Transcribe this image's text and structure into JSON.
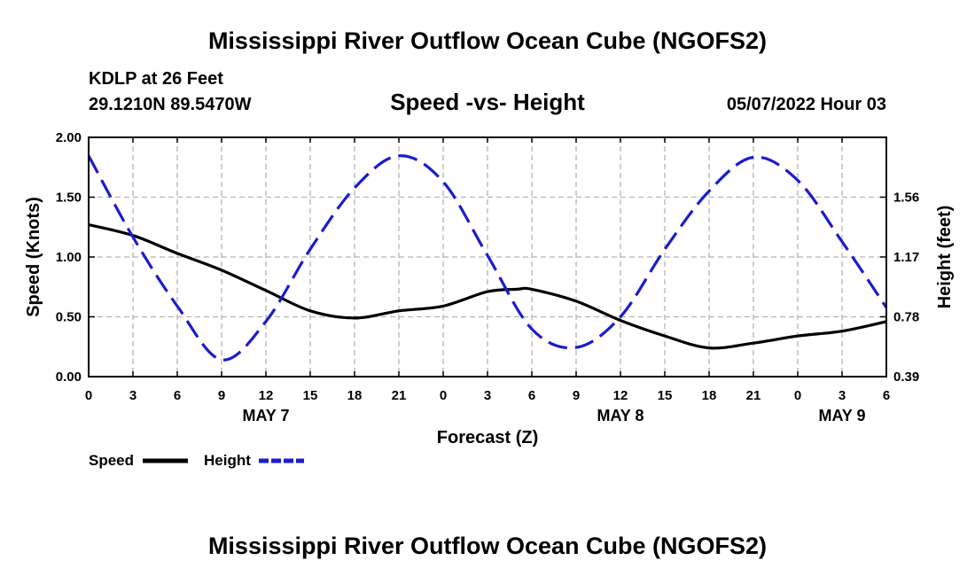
{
  "header": {
    "title": "Mississippi River Outflow Ocean Cube (NGOFS2)",
    "station": "KDLP at 26 Feet",
    "location": "29.1210N  89.5470W",
    "chart_title": "Speed -vs- Height",
    "timestamp": "05/07/2022 Hour 03"
  },
  "footer": {
    "title": "Mississippi River Outflow Ocean Cube (NGOFS2)"
  },
  "legend": {
    "speed_label": "Speed",
    "height_label": "Height"
  },
  "colors": {
    "speed": "#000000",
    "height": "#1c1ccc",
    "grid": "#b4b4b4"
  },
  "chart_data": {
    "type": "line",
    "title": "Speed -vs- Height",
    "xlabel": "Forecast (Z)",
    "ylabel": "Speed (Knots)",
    "y2label": "Height (feet)",
    "x_tick_labels": [
      "0",
      "3",
      "6",
      "9",
      "12",
      "15",
      "18",
      "21",
      "0",
      "3",
      "6",
      "9",
      "12",
      "15",
      "18",
      "21",
      "0",
      "3",
      "6"
    ],
    "date_labels": [
      {
        "label": "MAY 7",
        "hour": 12
      },
      {
        "label": "MAY 8",
        "hour": 36
      },
      {
        "label": "MAY 9",
        "hour": 51
      }
    ],
    "xlim": [
      0,
      54
    ],
    "ylim": [
      0,
      2.0
    ],
    "y_ticks": [
      0.0,
      0.5,
      1.0,
      1.5,
      2.0
    ],
    "y_tick_labels": [
      "0.00",
      "0.50",
      "1.00",
      "1.50",
      "2.00"
    ],
    "y2lim": [
      0.39,
      1.95
    ],
    "y2_ticks": [
      0.39,
      0.78,
      1.17,
      1.56
    ],
    "y2_tick_labels": [
      "0.39",
      "0.78",
      "1.17",
      "1.56"
    ],
    "grid": true,
    "legend_position": "bottom-left",
    "series": [
      {
        "name": "Speed",
        "axis": "left",
        "style": "solid",
        "x": [
          0,
          3,
          6,
          9,
          12,
          15,
          18,
          21,
          24,
          27,
          29,
          30,
          33,
          36,
          39,
          42,
          45,
          48,
          51,
          54
        ],
        "values": [
          1.27,
          1.18,
          1.03,
          0.89,
          0.72,
          0.55,
          0.49,
          0.55,
          0.59,
          0.71,
          0.73,
          0.73,
          0.63,
          0.47,
          0.34,
          0.24,
          0.28,
          0.34,
          0.38,
          0.46
        ]
      },
      {
        "name": "Height",
        "axis": "right",
        "style": "dashed",
        "x": [
          0,
          3,
          6,
          9,
          12,
          15,
          18,
          21,
          24,
          27,
          30,
          33,
          36,
          39,
          42,
          45,
          48,
          51,
          54
        ],
        "values": [
          1.83,
          1.3,
          0.85,
          0.5,
          0.75,
          1.22,
          1.62,
          1.83,
          1.66,
          1.18,
          0.7,
          0.58,
          0.78,
          1.22,
          1.6,
          1.82,
          1.67,
          1.27,
          0.84
        ]
      }
    ]
  }
}
